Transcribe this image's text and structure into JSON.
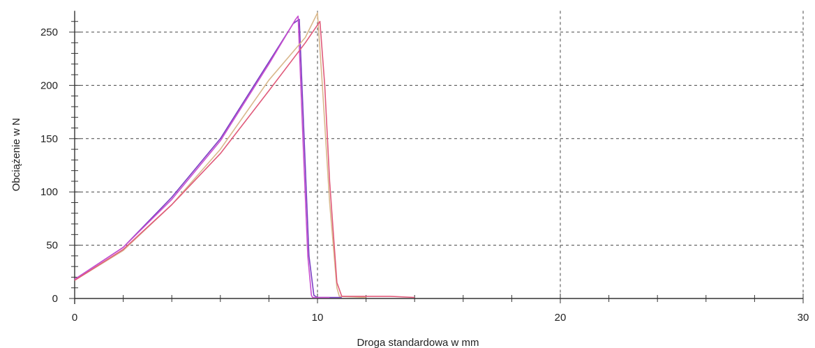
{
  "chart_data": {
    "type": "line",
    "title": "",
    "xlabel": "Droga standardowa w mm",
    "ylabel": "Obciążenie w N",
    "xlim": [
      0,
      30
    ],
    "ylim": [
      0,
      270
    ],
    "x_ticks": [
      "0",
      "10",
      "20",
      "30"
    ],
    "y_ticks": [
      "0",
      "50",
      "100",
      "150",
      "200",
      "250"
    ],
    "x_tick_values": [
      0,
      10,
      20,
      30
    ],
    "y_tick_values": [
      0,
      50,
      100,
      150,
      200,
      250
    ],
    "grid": true,
    "grid_style": "dashed",
    "legend": "none",
    "series": [
      {
        "color": "#7b3fc4",
        "x": [
          0,
          2,
          4,
          6,
          8,
          9.0,
          9.25,
          9.45,
          9.65,
          9.85,
          10.0,
          11.0
        ],
        "y": [
          18,
          48,
          95,
          150,
          222,
          258,
          262,
          150,
          40,
          3,
          1,
          1
        ]
      },
      {
        "color": "#c84fcf",
        "x": [
          0,
          2,
          4,
          6,
          8,
          9.1,
          9.2,
          9.4,
          9.6,
          9.75,
          9.8,
          10.5
        ],
        "y": [
          18,
          48,
          93,
          148,
          220,
          262,
          265,
          150,
          40,
          3,
          1,
          1
        ]
      },
      {
        "color": "#d9b88c",
        "x": [
          0,
          2,
          4,
          6,
          8,
          9.5,
          10.0,
          10.2,
          10.5,
          10.8,
          10.9,
          12.0
        ],
        "y": [
          17,
          45,
          88,
          140,
          205,
          245,
          268,
          200,
          90,
          10,
          2,
          1
        ]
      },
      {
        "color": "#e05a7a",
        "x": [
          0,
          2,
          4,
          6,
          8,
          9.5,
          10.1,
          10.3,
          10.5,
          10.8,
          11.0,
          13.0,
          14.0
        ],
        "y": [
          17,
          46,
          88,
          136,
          195,
          240,
          260,
          200,
          110,
          15,
          2,
          2,
          1
        ]
      }
    ]
  }
}
